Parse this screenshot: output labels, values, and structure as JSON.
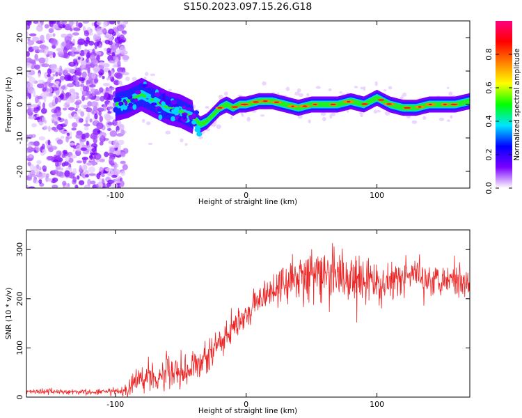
{
  "title": "S150.2023.097.15.26.G18",
  "chart_data": [
    {
      "type": "heatmap",
      "xlabel": "Height of straight line (km)",
      "ylabel": "Frequency (Hz)",
      "xlim": [
        -168,
        171
      ],
      "ylim": [
        -25,
        25
      ],
      "xticks": [
        -100,
        0,
        100
      ],
      "yticks": [
        -20,
        -10,
        0,
        10,
        20
      ],
      "colorbar": {
        "label": "Normalized spectral amplitude",
        "range": [
          0,
          1
        ],
        "ticks": [
          "0.0",
          "0.2",
          "0.4",
          "0.6",
          "0.8"
        ],
        "colormap": [
          "#ffffff",
          "#7a00ff",
          "#0000ff",
          "#00e5ff",
          "#00ff00",
          "#ffff00",
          "#ff8000",
          "#ff0000",
          "#ff0080"
        ]
      },
      "ridge": {
        "name": "dominant frequency track",
        "x": [
          -100,
          -90,
          -80,
          -70,
          -60,
          -50,
          -40,
          -35,
          -30,
          -25,
          -20,
          -15,
          -10,
          -5,
          0,
          10,
          20,
          30,
          40,
          50,
          60,
          70,
          80,
          90,
          100,
          110,
          120,
          130,
          140,
          150,
          160,
          171
        ],
        "y": [
          0,
          1,
          3,
          1,
          -1,
          -2,
          -4,
          -6,
          -5,
          -3,
          -1,
          0,
          -1,
          0,
          0,
          1,
          1,
          0,
          -1,
          0,
          0,
          0,
          1,
          0,
          2,
          0,
          -1,
          -1,
          0,
          0,
          0,
          1
        ]
      },
      "noise_region": [
        -168,
        -100
      ]
    },
    {
      "type": "line",
      "xlabel": "Height of straight line (km)",
      "ylabel": "SNR (10 * v/v)",
      "xlim": [
        -168,
        171
      ],
      "ylim": [
        0,
        340
      ],
      "xticks": [
        -100,
        0,
        100
      ],
      "yticks": [
        0,
        100,
        200,
        300
      ],
      "color": "#ee2222",
      "x": [
        -168,
        -150,
        -130,
        -110,
        -95,
        -90,
        -85,
        -80,
        -70,
        -60,
        -50,
        -40,
        -30,
        -20,
        -10,
        0,
        10,
        20,
        30,
        40,
        50,
        60,
        70,
        80,
        90,
        100,
        110,
        120,
        130,
        140,
        150,
        160,
        171
      ],
      "y": [
        12,
        11,
        10,
        10,
        12,
        18,
        30,
        40,
        45,
        50,
        55,
        60,
        80,
        110,
        140,
        170,
        195,
        215,
        235,
        245,
        250,
        245,
        240,
        245,
        235,
        230,
        235,
        245,
        250,
        240,
        245,
        235,
        240
      ],
      "noise_amplitude": [
        5,
        5,
        5,
        5,
        8,
        20,
        25,
        28,
        28,
        30,
        30,
        30,
        28,
        25,
        25,
        25,
        25,
        25,
        35,
        40,
        40,
        45,
        50,
        45,
        40,
        40,
        35,
        30,
        30,
        30,
        28,
        28,
        28
      ]
    }
  ]
}
